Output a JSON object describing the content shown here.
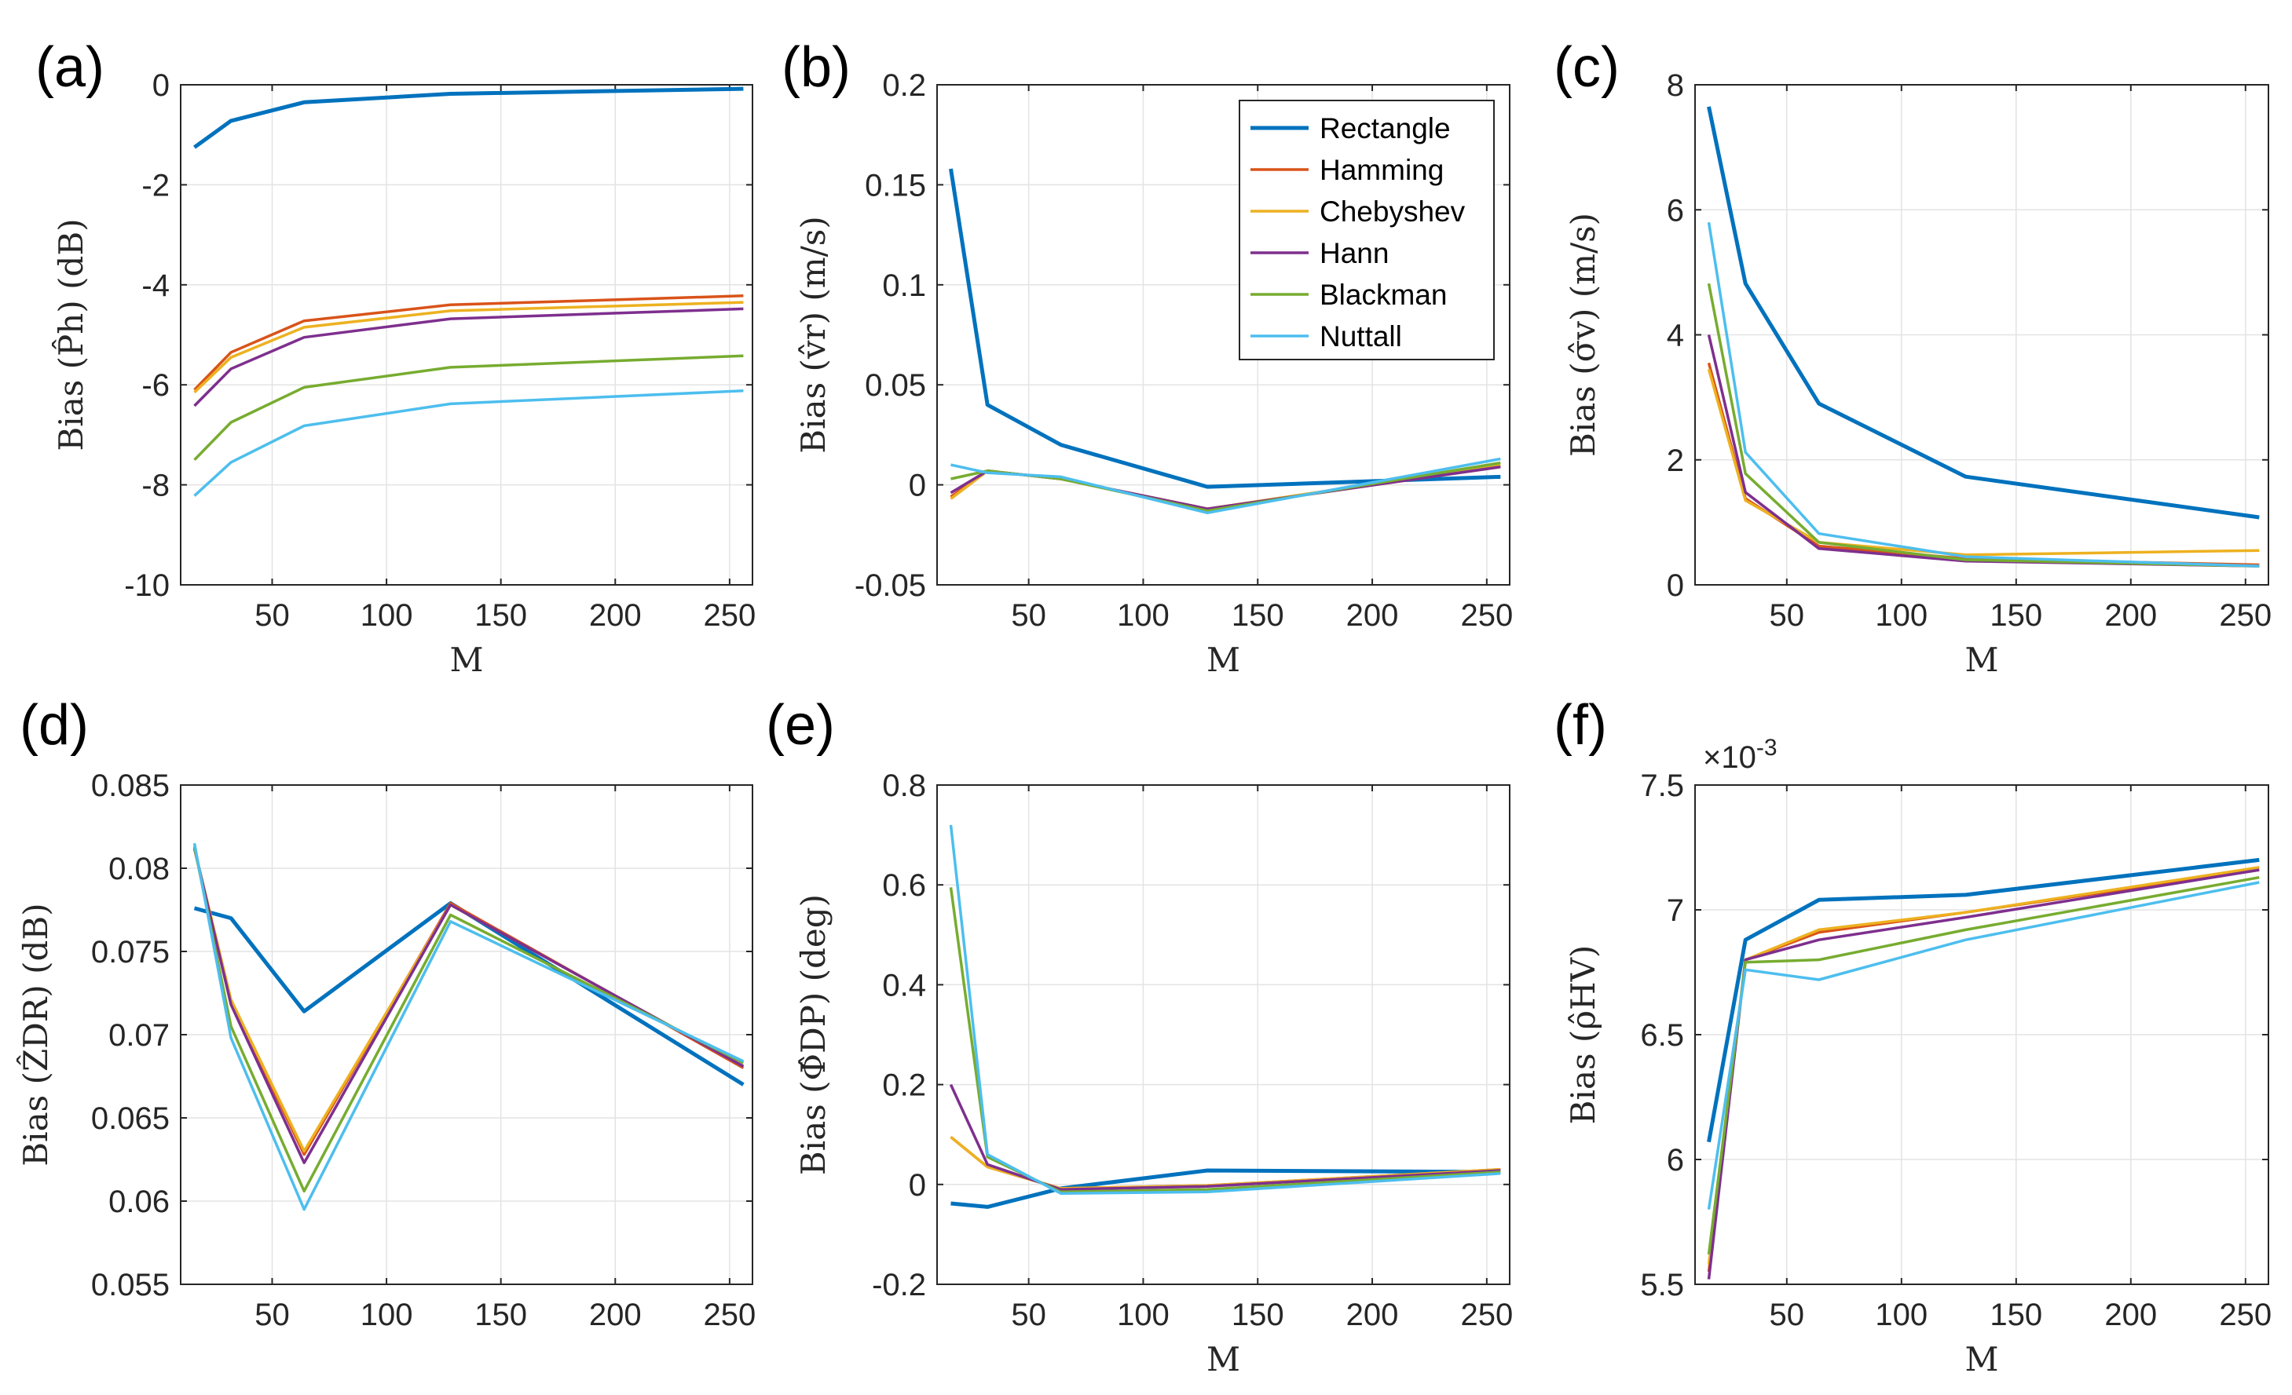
{
  "figure": {
    "x_label": "M"
  },
  "legend": [
    "Rectangle",
    "Hamming",
    "Chebyshev",
    "Hann",
    "Blackman",
    "Nuttall"
  ],
  "colors": {
    "Rectangle": "#0072BD",
    "Hamming": "#D95319",
    "Chebyshev": "#EDB120",
    "Hann": "#7E2F8E",
    "Blackman": "#77AC30",
    "Nuttall": "#4DBEEE"
  },
  "chart_data": [
    {
      "panel": "(a)",
      "type": "line",
      "ylabel_text": "Bias",
      "ylabel_sym": "(P̂h)",
      "ylabel_unit": "(dB)",
      "xlabel": "M",
      "xlim": [
        10,
        260
      ],
      "ylim": [
        -10,
        0
      ],
      "xticks": [
        50,
        100,
        150,
        200,
        250
      ],
      "yticks": [
        -10,
        -8,
        -6,
        -4,
        -2,
        0
      ],
      "ytick_labels": [
        "-10",
        "-8",
        "-6",
        "-4",
        "-2",
        "0"
      ],
      "x": [
        16,
        32,
        64,
        128,
        256
      ],
      "series": [
        {
          "name": "Rectangle",
          "values": [
            -1.25,
            -0.72,
            -0.35,
            -0.18,
            -0.08
          ]
        },
        {
          "name": "Hamming",
          "values": [
            -6.1,
            -5.35,
            -4.72,
            -4.4,
            -4.22
          ]
        },
        {
          "name": "Chebyshev",
          "values": [
            -6.15,
            -5.45,
            -4.85,
            -4.52,
            -4.35
          ]
        },
        {
          "name": "Hann",
          "values": [
            -6.42,
            -5.68,
            -5.05,
            -4.68,
            -4.48
          ]
        },
        {
          "name": "Blackman",
          "values": [
            -7.5,
            -6.75,
            -6.05,
            -5.65,
            -5.42
          ]
        },
        {
          "name": "Nuttall",
          "values": [
            -8.22,
            -7.55,
            -6.82,
            -6.38,
            -6.12
          ]
        }
      ]
    },
    {
      "panel": "(b)",
      "type": "line",
      "ylabel_text": "Bias",
      "ylabel_sym": "(v̂r)",
      "ylabel_unit": "(m/s)",
      "xlabel": "M",
      "xlim": [
        10,
        260
      ],
      "ylim": [
        -0.05,
        0.2
      ],
      "xticks": [
        50,
        100,
        150,
        200,
        250
      ],
      "yticks": [
        -0.05,
        0,
        0.05,
        0.1,
        0.15,
        0.2
      ],
      "ytick_labels": [
        "-0.05",
        "0",
        "0.05",
        "0.1",
        "0.15",
        "0.2"
      ],
      "x": [
        16,
        32,
        64,
        128,
        256
      ],
      "series": [
        {
          "name": "Rectangle",
          "values": [
            0.158,
            0.04,
            0.02,
            -0.001,
            0.004
          ]
        },
        {
          "name": "Hamming",
          "values": [
            -0.006,
            0.007,
            0.003,
            -0.012,
            0.009
          ]
        },
        {
          "name": "Chebyshev",
          "values": [
            -0.007,
            0.007,
            0.003,
            -0.012,
            0.01
          ]
        },
        {
          "name": "Hann",
          "values": [
            -0.004,
            0.007,
            0.003,
            -0.012,
            0.009
          ]
        },
        {
          "name": "Blackman",
          "values": [
            0.003,
            0.007,
            0.003,
            -0.013,
            0.011
          ]
        },
        {
          "name": "Nuttall",
          "values": [
            0.01,
            0.006,
            0.004,
            -0.014,
            0.013
          ]
        }
      ]
    },
    {
      "panel": "(c)",
      "type": "line",
      "ylabel_text": "Bias",
      "ylabel_sym": "(σ̂v)",
      "ylabel_unit": "(m/s)",
      "xlabel": "M",
      "xlim": [
        10,
        260
      ],
      "ylim": [
        0,
        8
      ],
      "xticks": [
        50,
        100,
        150,
        200,
        250
      ],
      "yticks": [
        0,
        2,
        4,
        6,
        8
      ],
      "ytick_labels": [
        "0",
        "2",
        "4",
        "6",
        "8"
      ],
      "x": [
        16,
        32,
        64,
        128,
        256
      ],
      "series": [
        {
          "name": "Rectangle",
          "values": [
            7.65,
            4.82,
            2.9,
            1.73,
            1.08
          ]
        },
        {
          "name": "Hamming",
          "values": [
            3.55,
            1.38,
            0.62,
            0.42,
            0.32
          ]
        },
        {
          "name": "Chebyshev",
          "values": [
            3.45,
            1.35,
            0.68,
            0.48,
            0.55
          ]
        },
        {
          "name": "Hann",
          "values": [
            4.0,
            1.48,
            0.58,
            0.38,
            0.3
          ]
        },
        {
          "name": "Blackman",
          "values": [
            4.82,
            1.78,
            0.68,
            0.4,
            0.3
          ]
        },
        {
          "name": "Nuttall",
          "values": [
            5.8,
            2.12,
            0.82,
            0.45,
            0.3
          ]
        }
      ]
    },
    {
      "panel": "(d)",
      "type": "line",
      "ylabel_text": "Bias",
      "ylabel_sym": "(ẐDR)",
      "ylabel_unit": "(dB)",
      "xlabel": "",
      "xlim": [
        10,
        260
      ],
      "ylim": [
        0.055,
        0.085
      ],
      "xticks": [
        50,
        100,
        150,
        200,
        250
      ],
      "yticks": [
        0.055,
        0.06,
        0.065,
        0.07,
        0.075,
        0.08,
        0.085
      ],
      "ytick_labels": [
        "0.055",
        "0.06",
        "0.065",
        "0.07",
        "0.075",
        "0.08",
        "0.085"
      ],
      "x": [
        16,
        32,
        64,
        128,
        256
      ],
      "series": [
        {
          "name": "Rectangle",
          "values": [
            0.0776,
            0.077,
            0.0714,
            0.0779,
            0.067
          ]
        },
        {
          "name": "Hamming",
          "values": [
            0.0812,
            0.072,
            0.0628,
            0.0779,
            0.068
          ]
        },
        {
          "name": "Chebyshev",
          "values": [
            0.0812,
            0.0721,
            0.063,
            0.0778,
            0.0681
          ]
        },
        {
          "name": "Hann",
          "values": [
            0.0812,
            0.0718,
            0.0623,
            0.0778,
            0.0681
          ]
        },
        {
          "name": "Blackman",
          "values": [
            0.0813,
            0.0705,
            0.0606,
            0.0772,
            0.0683
          ]
        },
        {
          "name": "Nuttall",
          "values": [
            0.0815,
            0.0698,
            0.0595,
            0.0768,
            0.0684
          ]
        }
      ]
    },
    {
      "panel": "(e)",
      "type": "line",
      "ylabel_text": "Bias",
      "ylabel_sym": "(Φ̂DP)",
      "ylabel_unit": "(deg)",
      "xlabel": "M",
      "xlim": [
        10,
        260
      ],
      "ylim": [
        -0.2,
        0.8
      ],
      "xticks": [
        50,
        100,
        150,
        200,
        250
      ],
      "yticks": [
        -0.2,
        0,
        0.2,
        0.4,
        0.6,
        0.8
      ],
      "ytick_labels": [
        "-0.2",
        "0",
        "0.2",
        "0.4",
        "0.6",
        "0.8"
      ],
      "x": [
        16,
        32,
        64,
        128,
        256
      ],
      "series": [
        {
          "name": "Rectangle",
          "values": [
            -0.038,
            -0.045,
            -0.008,
            0.028,
            0.025
          ]
        },
        {
          "name": "Hamming",
          "values": [
            0.095,
            0.035,
            -0.008,
            -0.002,
            0.03
          ]
        },
        {
          "name": "Chebyshev",
          "values": [
            0.095,
            0.035,
            -0.008,
            -0.002,
            0.03
          ]
        },
        {
          "name": "Hann",
          "values": [
            0.2,
            0.04,
            -0.01,
            -0.004,
            0.028
          ]
        },
        {
          "name": "Blackman",
          "values": [
            0.595,
            0.055,
            -0.015,
            -0.01,
            0.025
          ]
        },
        {
          "name": "Nuttall",
          "values": [
            0.72,
            0.06,
            -0.018,
            -0.015,
            0.022
          ]
        }
      ]
    },
    {
      "panel": "(f)",
      "type": "line",
      "ylabel_text": "Bias",
      "ylabel_sym": "(ρ̂HV)",
      "ylabel_unit": "",
      "xlabel": "M",
      "xlim": [
        10,
        260
      ],
      "ylim": [
        5.5,
        7.5
      ],
      "exponent_label": "×10-3",
      "xticks": [
        50,
        100,
        150,
        200,
        250
      ],
      "yticks": [
        5.5,
        6,
        6.5,
        7,
        7.5
      ],
      "ytick_labels": [
        "5.5",
        "6",
        "6.5",
        "7",
        "7.5"
      ],
      "x": [
        16,
        32,
        64,
        128,
        256
      ],
      "series": [
        {
          "name": "Rectangle",
          "values": [
            6.07,
            6.88,
            7.04,
            7.06,
            7.2
          ]
        },
        {
          "name": "Hamming",
          "values": [
            5.55,
            6.8,
            6.91,
            6.99,
            7.16
          ]
        },
        {
          "name": "Chebyshev",
          "values": [
            5.58,
            6.8,
            6.92,
            6.99,
            7.17
          ]
        },
        {
          "name": "Hann",
          "values": [
            5.52,
            6.8,
            6.88,
            6.97,
            7.16
          ]
        },
        {
          "name": "Blackman",
          "values": [
            5.62,
            6.79,
            6.8,
            6.92,
            7.13
          ]
        },
        {
          "name": "Nuttall",
          "values": [
            5.8,
            6.76,
            6.72,
            6.88,
            7.11
          ]
        }
      ]
    }
  ]
}
